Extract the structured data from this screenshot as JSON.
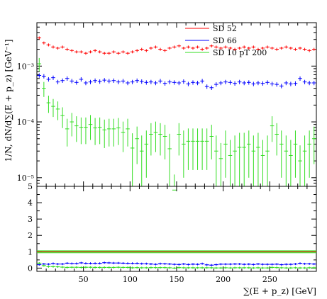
{
  "chart_data": {
    "type": "scatter",
    "xlabel": "∑(E + p_z) [GeV]",
    "ylabel": "1/N, dN/d∑(E + p_z) [GeV⁻¹]",
    "xlim": [
      0,
      300
    ],
    "top_panel": {
      "yscale": "log",
      "ylim": [
        7e-06,
        0.006
      ],
      "y_ticks": [
        {
          "value": 0.001,
          "label": "10⁻³"
        },
        {
          "value": 0.0001,
          "label": "10⁻⁴"
        },
        {
          "value": 1e-05,
          "label": "10⁻⁵"
        }
      ]
    },
    "ratio_panel": {
      "ylim": [
        -0.2,
        5
      ],
      "y_ticks": [
        "0",
        "1",
        "2",
        "3",
        "4",
        "5"
      ],
      "reference_line": 1.0
    },
    "x_ticks": [
      "50",
      "100",
      "150",
      "200",
      "250"
    ],
    "legend_position": "top-right",
    "series": [
      {
        "name": "SD 52",
        "color": "#ff0000",
        "x": [
          2.5,
          7.5,
          12.5,
          17.5,
          22.5,
          27.5,
          32.5,
          37.5,
          42.5,
          47.5,
          52.5,
          57.5,
          62.5,
          67.5,
          72.5,
          77.5,
          82.5,
          87.5,
          92.5,
          97.5,
          102.5,
          107.5,
          112.5,
          117.5,
          122.5,
          127.5,
          132.5,
          137.5,
          142.5,
          147.5,
          152.5,
          157.5,
          162.5,
          167.5,
          172.5,
          177.5,
          182.5,
          187.5,
          192.5,
          197.5,
          202.5,
          207.5,
          212.5,
          217.5,
          222.5,
          227.5,
          232.5,
          237.5,
          242.5,
          247.5,
          252.5,
          257.5,
          262.5,
          267.5,
          272.5,
          277.5,
          282.5,
          287.5,
          292.5,
          297.5
        ],
        "y": [
          0.0032,
          0.0026,
          0.0024,
          0.0022,
          0.0021,
          0.0022,
          0.002,
          0.0019,
          0.0018,
          0.0018,
          0.0017,
          0.0018,
          0.0019,
          0.0018,
          0.0017,
          0.0017,
          0.0018,
          0.0017,
          0.0018,
          0.0017,
          0.0018,
          0.0019,
          0.002,
          0.0019,
          0.0021,
          0.0022,
          0.002,
          0.0019,
          0.0021,
          0.0022,
          0.0023,
          0.0021,
          0.0022,
          0.0021,
          0.0022,
          0.002,
          0.0021,
          0.0023,
          0.0022,
          0.0021,
          0.0022,
          0.0021,
          0.002,
          0.0021,
          0.0022,
          0.0021,
          0.0022,
          0.002,
          0.0021,
          0.0022,
          0.0021,
          0.002,
          0.0021,
          0.0022,
          0.0021,
          0.002,
          0.0021,
          0.002,
          0.0019,
          0.002
        ]
      },
      {
        "name": "SD 66",
        "color": "#0000ff",
        "x": [
          2.5,
          7.5,
          12.5,
          17.5,
          22.5,
          27.5,
          32.5,
          37.5,
          42.5,
          47.5,
          52.5,
          57.5,
          62.5,
          67.5,
          72.5,
          77.5,
          82.5,
          87.5,
          92.5,
          97.5,
          102.5,
          107.5,
          112.5,
          117.5,
          122.5,
          127.5,
          132.5,
          137.5,
          142.5,
          147.5,
          152.5,
          157.5,
          162.5,
          167.5,
          172.5,
          177.5,
          182.5,
          187.5,
          192.5,
          197.5,
          202.5,
          207.5,
          212.5,
          217.5,
          222.5,
          227.5,
          232.5,
          237.5,
          242.5,
          247.5,
          252.5,
          257.5,
          262.5,
          267.5,
          272.5,
          277.5,
          282.5,
          287.5,
          292.5,
          297.5
        ],
        "y": [
          0.00068,
          0.00066,
          0.00058,
          0.00062,
          0.00052,
          0.00055,
          0.0006,
          0.00054,
          0.00051,
          0.00058,
          0.0005,
          0.00052,
          0.00055,
          0.00053,
          0.00056,
          0.00054,
          0.00055,
          0.00052,
          0.00054,
          0.0005,
          0.00052,
          0.00055,
          0.00053,
          0.00051,
          0.00052,
          0.0005,
          0.00054,
          0.00049,
          0.00052,
          0.00051,
          0.0005,
          0.00053,
          0.00048,
          0.00051,
          0.0005,
          0.00054,
          0.00043,
          0.00041,
          0.00047,
          0.0005,
          0.00052,
          0.00051,
          0.00049,
          0.00052,
          0.0005,
          0.00051,
          0.00048,
          0.0005,
          0.00049,
          0.00051,
          0.00048,
          0.00047,
          0.00044,
          0.0005,
          0.00048,
          0.00049,
          0.0006,
          0.00052,
          0.0005,
          0.0005
        ]
      },
      {
        "name": "SD 10 pT 200",
        "color": "#33dd22",
        "x": [
          2.5,
          7.5,
          12.5,
          17.5,
          22.5,
          27.5,
          32.5,
          37.5,
          42.5,
          47.5,
          52.5,
          57.5,
          62.5,
          67.5,
          72.5,
          77.5,
          82.5,
          87.5,
          92.5,
          97.5,
          102.5,
          107.5,
          112.5,
          117.5,
          122.5,
          127.5,
          132.5,
          137.5,
          142.5,
          147.5,
          152.5,
          157.5,
          162.5,
          167.5,
          172.5,
          177.5,
          182.5,
          187.5,
          192.5,
          197.5,
          202.5,
          207.5,
          212.5,
          217.5,
          222.5,
          227.5,
          232.5,
          237.5,
          242.5,
          247.5,
          252.5,
          257.5,
          262.5,
          267.5,
          272.5,
          277.5,
          282.5,
          287.5,
          292.5,
          297.5
        ],
        "y": [
          0.0011,
          0.0004,
          0.00022,
          0.00019,
          0.00017,
          0.00013,
          7.5e-05,
          0.0001,
          8.5e-05,
          8e-05,
          8e-05,
          9e-05,
          7.8e-05,
          8e-05,
          7.2e-05,
          7.5e-05,
          7.5e-05,
          7.8e-05,
          6.5e-05,
          7.5e-05,
          3.4e-05,
          5e-05,
          3e-05,
          4e-05,
          6e-05,
          6.5e-05,
          6e-05,
          5.5e-05,
          3.3e-05,
          6e-06,
          6e-05,
          4e-05,
          4.5e-05,
          4.5e-05,
          4.5e-05,
          4.5e-05,
          4.5e-05,
          5.5e-05,
          3e-05,
          2.2e-05,
          4e-05,
          2.5e-05,
          3e-05,
          3.5e-05,
          3.5e-05,
          4e-05,
          3e-05,
          3.5e-05,
          2.5e-05,
          3e-05,
          8.5e-05,
          6e-05,
          4e-05,
          3e-05,
          2.5e-05,
          4e-05,
          2e-05,
          3e-05,
          4e-05,
          5e-05
        ]
      }
    ],
    "ratio_series": [
      {
        "name": "SD 52",
        "color": "#ff0000",
        "constant": 1.0
      },
      {
        "name": "SD 66",
        "color": "#0000ff",
        "y": [
          0.21,
          0.25,
          0.24,
          0.28,
          0.25,
          0.25,
          0.3,
          0.28,
          0.28,
          0.32,
          0.29,
          0.29,
          0.29,
          0.29,
          0.33,
          0.32,
          0.31,
          0.31,
          0.3,
          0.29,
          0.29,
          0.29,
          0.27,
          0.27,
          0.25,
          0.23,
          0.27,
          0.26,
          0.25,
          0.23,
          0.22,
          0.25,
          0.22,
          0.24,
          0.23,
          0.27,
          0.2,
          0.18,
          0.21,
          0.24,
          0.24,
          0.24,
          0.25,
          0.25,
          0.23,
          0.24,
          0.22,
          0.25,
          0.23,
          0.23,
          0.23,
          0.24,
          0.21,
          0.23,
          0.23,
          0.25,
          0.29,
          0.26,
          0.26,
          0.25
        ]
      },
      {
        "name": "SD 10 pT 200",
        "color": "#33dd22",
        "y": [
          0.3,
          0.15,
          0.09,
          0.09,
          0.08,
          0.06,
          0.04,
          0.05,
          0.05,
          0.04,
          0.05,
          0.05,
          0.04,
          0.04,
          0.04,
          0.04,
          0.04,
          0.05,
          0.04,
          0.04,
          0.02,
          0.03,
          0.02,
          0.02,
          0.03,
          0.03,
          0.03,
          0.03,
          0.02,
          0.0,
          0.03,
          0.02,
          0.02,
          0.02,
          0.02,
          0.02,
          0.02,
          0.02,
          0.01,
          0.01,
          0.02,
          0.01,
          0.02,
          0.02,
          0.02,
          0.02,
          0.01,
          0.02,
          0.01,
          0.01,
          0.04,
          0.03,
          0.02,
          0.01,
          0.01,
          0.02,
          0.01,
          0.01,
          0.02,
          0.02
        ]
      }
    ]
  }
}
